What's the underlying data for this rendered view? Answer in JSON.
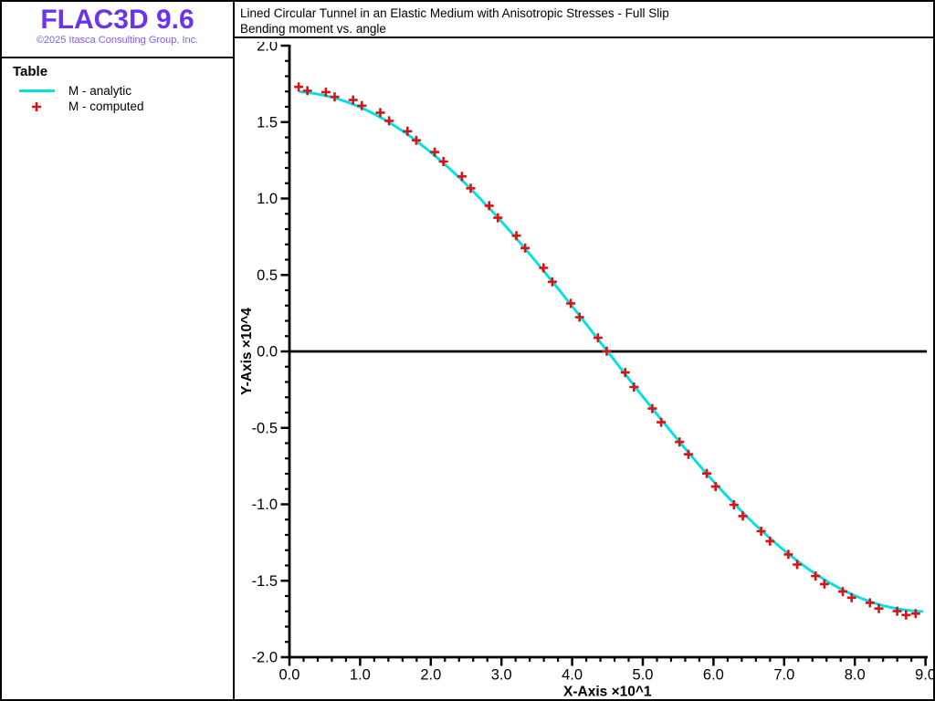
{
  "app": {
    "logo": "FLAC3D 9.6",
    "logo_color": "#6b33ee",
    "copyright": "©2025 Itasca Consulting Group, Inc.",
    "copyright_color": "#7d5cf0"
  },
  "header": {
    "title_line1": "Lined Circular Tunnel in an Elastic Medium with Anisotropic Stresses - Full Slip",
    "title_line2": "Bending moment vs. angle"
  },
  "legend": {
    "title": "Table",
    "items": [
      {
        "label": "M - analytic",
        "marker": "line",
        "color": "#00e0e6"
      },
      {
        "label": "M - computed",
        "marker": "plus",
        "color": "#d81414"
      }
    ]
  },
  "chart_data": {
    "type": "line",
    "title": "Bending moment vs. angle",
    "xlabel": "X-Axis ×10^1",
    "ylabel": "Y-Axis ×10^4",
    "xlim": [
      0,
      9
    ],
    "ylim": [
      -2,
      2
    ],
    "x_major_step": 1.0,
    "x_minor_step": 0.2,
    "y_major_step": 0.5,
    "y_minor_step": 0.1,
    "x_tick_labels": [
      "0.0",
      "1.0",
      "2.0",
      "3.0",
      "4.0",
      "5.0",
      "6.0",
      "7.0",
      "8.0",
      "9.0"
    ],
    "y_tick_labels": [
      "2.0",
      "1.5",
      "1.0",
      "0.5",
      "0.0",
      "-0.5",
      "-1.0",
      "-1.5",
      "-2.0"
    ],
    "grid": false,
    "zero_line": true,
    "axis_color": "#000000",
    "legend_position": "left-sidebar",
    "series": [
      {
        "name": "M - analytic",
        "type": "line",
        "color": "#00e0e6",
        "x": [
          0.15,
          0.3,
          0.45,
          0.6,
          0.75,
          0.9,
          1.05,
          1.2,
          1.35,
          1.5,
          1.65,
          1.8,
          1.95,
          2.1,
          2.25,
          2.4,
          2.55,
          2.7,
          2.85,
          3.0,
          3.15,
          3.3,
          3.45,
          3.6,
          3.75,
          3.9,
          4.05,
          4.2,
          4.35,
          4.5,
          4.65,
          4.8,
          4.95,
          5.1,
          5.25,
          5.4,
          5.55,
          5.7,
          5.85,
          6.0,
          6.15,
          6.3,
          6.45,
          6.6,
          6.75,
          6.9,
          7.05,
          7.2,
          7.35,
          7.5,
          7.65,
          7.8,
          7.95,
          8.1,
          8.25,
          8.4,
          8.55,
          8.7,
          8.85,
          8.95
        ],
        "y": [
          1.698,
          1.691,
          1.679,
          1.663,
          1.642,
          1.617,
          1.587,
          1.553,
          1.515,
          1.472,
          1.426,
          1.375,
          1.321,
          1.263,
          1.202,
          1.138,
          1.07,
          0.999,
          0.926,
          0.85,
          0.772,
          0.691,
          0.609,
          0.525,
          0.44,
          0.353,
          0.266,
          0.178,
          0.089,
          0.0,
          -0.089,
          -0.178,
          -0.266,
          -0.353,
          -0.44,
          -0.525,
          -0.609,
          -0.691,
          -0.772,
          -0.85,
          -0.926,
          -0.999,
          -1.07,
          -1.138,
          -1.202,
          -1.263,
          -1.321,
          -1.375,
          -1.426,
          -1.472,
          -1.515,
          -1.553,
          -1.587,
          -1.617,
          -1.642,
          -1.663,
          -1.679,
          -1.691,
          -1.698,
          -1.7
        ]
      },
      {
        "name": "M - computed",
        "type": "scatter",
        "marker": "plus",
        "color": "#d81414",
        "x": [
          0.13,
          0.255,
          0.515,
          0.64,
          0.9,
          1.025,
          1.285,
          1.41,
          1.67,
          1.795,
          2.055,
          2.18,
          2.44,
          2.565,
          2.825,
          2.95,
          3.21,
          3.335,
          3.595,
          3.72,
          3.98,
          4.105,
          4.365,
          4.49,
          4.75,
          4.875,
          5.135,
          5.26,
          5.52,
          5.645,
          5.905,
          6.03,
          6.29,
          6.415,
          6.675,
          6.8,
          7.06,
          7.185,
          7.445,
          7.57,
          7.83,
          7.955,
          8.215,
          8.34,
          8.6,
          8.725,
          8.86
        ],
        "y": [
          1.73,
          1.705,
          1.696,
          1.665,
          1.644,
          1.607,
          1.562,
          1.508,
          1.44,
          1.381,
          1.304,
          1.242,
          1.145,
          1.067,
          0.953,
          0.874,
          0.757,
          0.676,
          0.546,
          0.455,
          0.314,
          0.224,
          0.089,
          0.002,
          -0.138,
          -0.233,
          -0.374,
          -0.463,
          -0.592,
          -0.673,
          -0.798,
          -0.884,
          -1.003,
          -1.077,
          -1.176,
          -1.241,
          -1.328,
          -1.394,
          -1.469,
          -1.522,
          -1.571,
          -1.611,
          -1.644,
          -1.682,
          -1.699,
          -1.724,
          -1.715
        ]
      }
    ]
  }
}
